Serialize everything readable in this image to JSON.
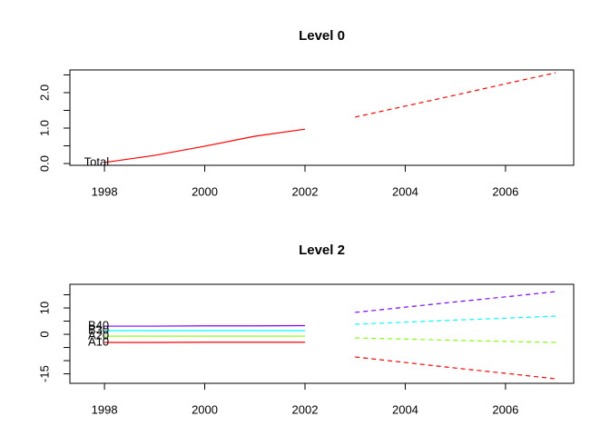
{
  "chart_data": [
    {
      "type": "line",
      "title": "Level 0",
      "x": [
        1998,
        1999,
        2000,
        2001,
        2002
      ],
      "forecast_x": [
        2003,
        2004,
        2005,
        2006,
        2007
      ],
      "series": [
        {
          "name": "Total",
          "color": "#ff0000",
          "values": [
            0.03,
            0.23,
            0.49,
            0.77,
            0.97
          ],
          "forecast": [
            1.31,
            1.62,
            1.93,
            2.25,
            2.56
          ]
        }
      ],
      "forecast_style": "dashed",
      "xlim": [
        1997.31,
        2007.36
      ],
      "xticks": [
        1998,
        2000,
        2002,
        2004,
        2006
      ],
      "ylim": [
        -0.05,
        2.64
      ],
      "yticks": [
        {
          "value": 0,
          "label": "0.0"
        },
        {
          "value": 1,
          "label": "1.0"
        },
        {
          "value": 2,
          "label": "2.0"
        }
      ],
      "yminor_ticks": [
        0.5,
        1.5,
        2.5
      ]
    },
    {
      "type": "line",
      "title": "Level 2",
      "x": [
        1998,
        1999,
        2000,
        2001,
        2002
      ],
      "forecast_x": [
        2003,
        2004,
        2005,
        2006,
        2007
      ],
      "series": [
        {
          "name": "A10",
          "color": "#ff0000",
          "values": [
            -3.1,
            -3.1,
            -3.0,
            -3.0,
            -3.0
          ],
          "forecast": [
            -8.6,
            -10.7,
            -12.8,
            -14.8,
            -16.9
          ]
        },
        {
          "name": "A20",
          "color": "#80ff00",
          "values": [
            -0.7,
            -0.7,
            -0.7,
            -0.7,
            -0.7
          ],
          "forecast": [
            -1.4,
            -1.8,
            -2.3,
            -2.7,
            -3.1
          ]
        },
        {
          "name": "B30",
          "color": "#00ffff",
          "values": [
            1.4,
            1.4,
            1.4,
            1.4,
            1.4
          ],
          "forecast": [
            3.8,
            4.6,
            5.4,
            6.1,
            6.9
          ]
        },
        {
          "name": "B40",
          "color": "#8000ff",
          "values": [
            3.1,
            3.1,
            3.2,
            3.2,
            3.3
          ],
          "forecast": [
            8.3,
            10.3,
            12.3,
            14.2,
            16.2
          ]
        }
      ],
      "forecast_style": "dashed",
      "xlim": [
        1997.31,
        2007.36
      ],
      "xticks": [
        1998,
        2000,
        2002,
        2004,
        2006
      ],
      "ylim": [
        -18.6,
        18.97
      ],
      "yticks": [
        10,
        0,
        -15
      ],
      "yminor_ticks": [
        15,
        5,
        -5,
        -10
      ]
    }
  ]
}
